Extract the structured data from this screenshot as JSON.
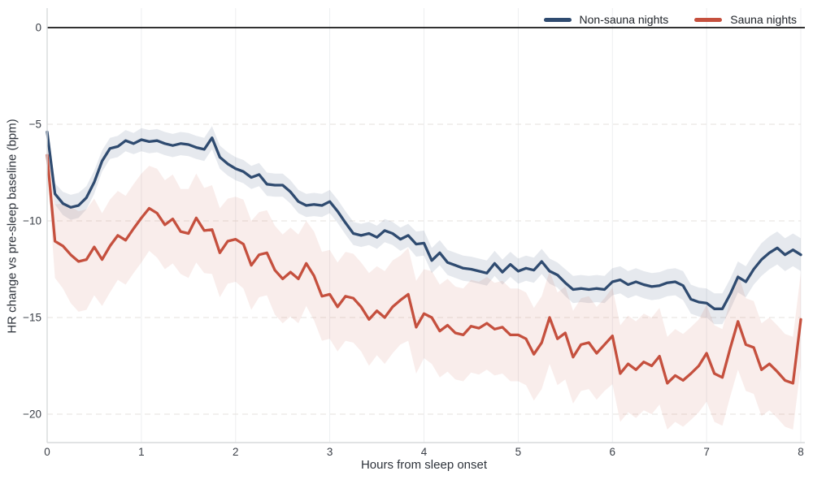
{
  "chart_data": {
    "type": "line",
    "title": "",
    "xlabel": "Hours from sleep onset",
    "ylabel": "HR change vs pre-sleep baseline (bpm)",
    "xlim": [
      0,
      8
    ],
    "ylim": [
      -21.5,
      1.0
    ],
    "xticks": [
      0,
      1,
      2,
      3,
      4,
      5,
      6,
      7,
      8
    ],
    "xtick_labels": [
      "0",
      "1",
      "2",
      "3",
      "4",
      "5",
      "6",
      "7",
      "8"
    ],
    "yticks": [
      0,
      -5,
      -10,
      -15,
      -20
    ],
    "ytick_labels": [
      "0",
      "−5",
      "−10",
      "−15",
      "−20"
    ],
    "grid": {
      "horizontal": "dashed",
      "vertical": "solid",
      "h_color": "#e6e1dd",
      "v_color": "#edeef0"
    },
    "zero_line": {
      "value": 0,
      "color": "#141414"
    },
    "legend": {
      "position": "top-right",
      "entries": [
        {
          "label": "Non-sauna nights",
          "color": "#2f4b70"
        },
        {
          "label": "Sauna nights",
          "color": "#c5503e"
        }
      ]
    },
    "x_hours": [
      0,
      0.083,
      0.167,
      0.25,
      0.333,
      0.417,
      0.5,
      0.583,
      0.667,
      0.75,
      0.833,
      0.917,
      1,
      1.083,
      1.167,
      1.25,
      1.333,
      1.417,
      1.5,
      1.583,
      1.667,
      1.75,
      1.833,
      1.917,
      2,
      2.083,
      2.167,
      2.25,
      2.333,
      2.417,
      2.5,
      2.583,
      2.667,
      2.75,
      2.833,
      2.917,
      3,
      3.083,
      3.167,
      3.25,
      3.333,
      3.417,
      3.5,
      3.583,
      3.667,
      3.75,
      3.833,
      3.917,
      4,
      4.083,
      4.167,
      4.25,
      4.333,
      4.417,
      4.5,
      4.583,
      4.667,
      4.75,
      4.833,
      4.917,
      5,
      5.083,
      5.167,
      5.25,
      5.333,
      5.417,
      5.5,
      5.583,
      5.667,
      5.75,
      5.833,
      5.917,
      6,
      6.083,
      6.167,
      6.25,
      6.333,
      6.417,
      6.5,
      6.583,
      6.667,
      6.75,
      6.833,
      6.917,
      7,
      7.083,
      7.167,
      7.25,
      7.333,
      7.417,
      7.5,
      7.583,
      7.667,
      7.75,
      7.833,
      7.917,
      8
    ],
    "series": [
      {
        "name": "Non-sauna nights",
        "color": "#2f4b70",
        "band_color": "rgba(47,75,112,0.12)",
        "values": [
          -5.4,
          -8.6,
          -9.1,
          -9.3,
          -9.2,
          -8.8,
          -8.0,
          -6.9,
          -6.25,
          -6.15,
          -5.85,
          -6.0,
          -5.8,
          -5.9,
          -5.85,
          -6.0,
          -6.1,
          -6.0,
          -6.05,
          -6.2,
          -6.3,
          -5.7,
          -6.7,
          -7.05,
          -7.3,
          -7.45,
          -7.75,
          -7.6,
          -8.1,
          -8.15,
          -8.15,
          -8.5,
          -9.0,
          -9.2,
          -9.15,
          -9.2,
          -9.0,
          -9.5,
          -10.1,
          -10.65,
          -10.75,
          -10.65,
          -10.85,
          -10.5,
          -10.65,
          -10.95,
          -10.75,
          -11.2,
          -11.15,
          -12.05,
          -11.65,
          -12.15,
          -12.3,
          -12.45,
          -12.5,
          -12.6,
          -12.7,
          -12.2,
          -12.65,
          -12.25,
          -12.6,
          -12.45,
          -12.55,
          -12.1,
          -12.6,
          -12.8,
          -13.2,
          -13.55,
          -13.5,
          -13.55,
          -13.5,
          -13.55,
          -13.15,
          -13.05,
          -13.3,
          -13.15,
          -13.3,
          -13.4,
          -13.35,
          -13.2,
          -13.15,
          -13.35,
          -14.05,
          -14.2,
          -14.25,
          -14.55,
          -14.55,
          -13.8,
          -12.9,
          -13.15,
          -12.5,
          -12.0,
          -11.65,
          -11.4,
          -11.75,
          -11.5,
          -11.75
        ],
        "ci_halfwidth": [
          0.35,
          0.55,
          0.6,
          0.65,
          0.65,
          0.6,
          0.6,
          0.55,
          0.55,
          0.55,
          0.55,
          0.55,
          0.6,
          0.6,
          0.6,
          0.6,
          0.6,
          0.6,
          0.6,
          0.6,
          0.6,
          0.6,
          0.6,
          0.6,
          0.6,
          0.6,
          0.6,
          0.6,
          0.6,
          0.6,
          0.6,
          0.6,
          0.6,
          0.6,
          0.6,
          0.6,
          0.6,
          0.6,
          0.6,
          0.6,
          0.6,
          0.6,
          0.6,
          0.6,
          0.6,
          0.6,
          0.6,
          0.65,
          0.65,
          0.65,
          0.65,
          0.65,
          0.65,
          0.65,
          0.65,
          0.65,
          0.65,
          0.65,
          0.65,
          0.65,
          0.65,
          0.65,
          0.65,
          0.65,
          0.65,
          0.65,
          0.7,
          0.7,
          0.7,
          0.7,
          0.7,
          0.7,
          0.7,
          0.7,
          0.7,
          0.7,
          0.7,
          0.7,
          0.7,
          0.7,
          0.7,
          0.75,
          0.75,
          0.75,
          0.75,
          0.8,
          0.8,
          0.8,
          0.8,
          0.8,
          0.8,
          0.85,
          0.85,
          0.85,
          0.85,
          0.85,
          0.85
        ]
      },
      {
        "name": "Sauna nights",
        "color": "#c5503e",
        "band_color": "rgba(197,80,62,0.10)",
        "values": [
          -6.6,
          -11.05,
          -11.3,
          -11.75,
          -12.1,
          -12.0,
          -11.35,
          -12.0,
          -11.3,
          -10.75,
          -11.0,
          -10.4,
          -9.85,
          -9.35,
          -9.6,
          -10.2,
          -9.9,
          -10.55,
          -10.65,
          -9.85,
          -10.5,
          -10.45,
          -11.65,
          -11.05,
          -10.95,
          -11.2,
          -12.3,
          -11.75,
          -11.65,
          -12.55,
          -13.0,
          -12.65,
          -13.0,
          -12.2,
          -12.85,
          -13.9,
          -13.8,
          -14.45,
          -13.9,
          -14.0,
          -14.45,
          -15.1,
          -14.65,
          -15.0,
          -14.45,
          -14.1,
          -13.8,
          -15.5,
          -14.8,
          -15.0,
          -15.7,
          -15.4,
          -15.8,
          -15.9,
          -15.45,
          -15.55,
          -15.3,
          -15.6,
          -15.5,
          -15.9,
          -15.9,
          -16.1,
          -16.9,
          -16.3,
          -15.0,
          -16.1,
          -15.8,
          -17.05,
          -16.4,
          -16.3,
          -16.85,
          -16.4,
          -15.95,
          -17.9,
          -17.4,
          -17.7,
          -17.3,
          -17.5,
          -17.0,
          -18.4,
          -18.0,
          -18.25,
          -17.9,
          -17.5,
          -16.85,
          -17.9,
          -18.1,
          -16.6,
          -15.2,
          -16.4,
          -16.55,
          -17.7,
          -17.4,
          -17.8,
          -18.25,
          -18.4,
          -15.1
        ],
        "ci_halfwidth": [
          0.7,
          1.9,
          2.2,
          2.5,
          2.6,
          2.6,
          2.5,
          2.4,
          2.4,
          2.3,
          2.3,
          2.3,
          2.3,
          2.2,
          2.3,
          2.3,
          2.3,
          2.2,
          2.3,
          2.3,
          2.2,
          2.3,
          2.3,
          2.2,
          2.2,
          2.3,
          2.3,
          2.2,
          2.2,
          2.3,
          2.3,
          2.3,
          2.3,
          2.2,
          2.3,
          2.3,
          2.3,
          2.3,
          2.3,
          2.3,
          2.3,
          2.4,
          2.3,
          2.4,
          2.4,
          2.3,
          2.4,
          2.4,
          2.3,
          2.4,
          2.4,
          2.4,
          2.4,
          2.4,
          2.4,
          2.4,
          2.4,
          2.4,
          2.4,
          2.4,
          2.4,
          2.4,
          2.4,
          2.4,
          2.4,
          2.4,
          2.4,
          2.4,
          2.4,
          2.4,
          2.4,
          2.4,
          2.5,
          2.5,
          2.5,
          2.5,
          2.5,
          2.5,
          2.5,
          2.4,
          2.4,
          2.4,
          2.4,
          2.4,
          2.5,
          2.5,
          2.5,
          2.5,
          2.5,
          2.4,
          2.4,
          2.4,
          2.4,
          2.4,
          2.4,
          2.4,
          2.4
        ]
      }
    ],
    "text_colors": {
      "ticks": "#3a3f47",
      "axis_labels": "#2e333b",
      "legend": "#1d2127"
    },
    "spine_color": "#d7dadc"
  }
}
